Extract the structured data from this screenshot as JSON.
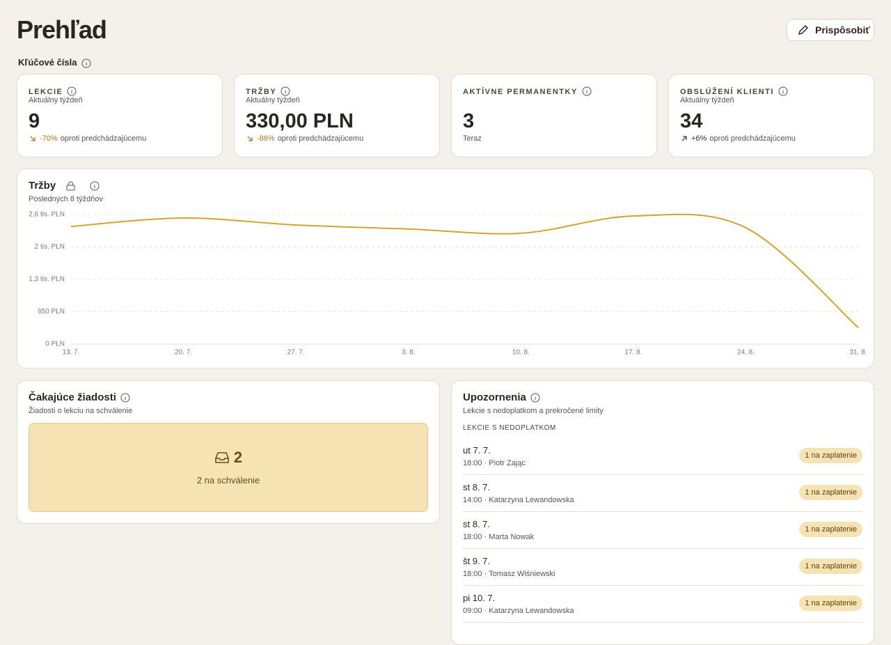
{
  "header": {
    "title": "Prehľad",
    "customize_button": "Prispôsobiť"
  },
  "key_figures": {
    "title": "Kľúčové čísla",
    "cards": [
      {
        "label": "LEKCIE",
        "sublabel": "Aktuálny týždeň",
        "value": "9",
        "change": "-70%",
        "comparison": "oproti predchádzajúcemu"
      },
      {
        "label": "TRŽBY",
        "sublabel": "Aktuálny týždeň",
        "value": "330,00 PLN",
        "change": "-86%",
        "comparison": "oproti predchádzajúcemu"
      },
      {
        "label": "AKTÍVNE PERMANENTKY",
        "value": "3",
        "note": "Teraz"
      },
      {
        "label": "OBSLÚŽENÍ KLIENTI",
        "sublabel": "Aktuálny týždeň",
        "value": "34",
        "change": "+6%",
        "comparison": "oproti predchádzajúcemu"
      }
    ]
  },
  "chart_data": {
    "type": "line",
    "title": "Tržby",
    "subtitle": "Posledných 8 týždňov",
    "categories": [
      "13. 7.",
      "20. 7.",
      "27. 7.",
      "3. 8.",
      "10. 8.",
      "17. 8.",
      "24. 8.",
      "31. 8."
    ],
    "values": [
      2360,
      2530,
      2390,
      2310,
      2225,
      2570,
      2335,
      330
    ],
    "color": "#d4a42a",
    "ylim": [
      0,
      2600
    ],
    "yticks": [
      {
        "value": 0,
        "label": "0 PLN"
      },
      {
        "value": 650,
        "label": "650 PLN"
      },
      {
        "value": 1300,
        "label": "1,3 tis. PLN"
      },
      {
        "value": 1950,
        "label": "2 tis. PLN"
      },
      {
        "value": 2600,
        "label": "2,6 tis. PLN"
      }
    ],
    "grid": true
  },
  "pending": {
    "title": "Čakajúce žiadosti",
    "subtitle": "Žiadosti o lekciu na schválenie",
    "count": "2",
    "label": "2 na schválenie"
  },
  "alerts": {
    "title": "Upozornenia",
    "subtitle": "Lekcie s nedoplatkom a prekročené limity",
    "section": "LEKCIE S NEDOPLATKOM",
    "items": [
      {
        "date": "ut 7. 7.",
        "detail": "18:00 · Piotr Zając",
        "badge": "1 na zaplatenie"
      },
      {
        "date": "st 8. 7.",
        "detail": "14:00 · Katarzyna Lewandowska",
        "badge": "1 na zaplatenie"
      },
      {
        "date": "st 8. 7.",
        "detail": "18:00 · Marta Nowak",
        "badge": "1 na zaplatenie"
      },
      {
        "date": "št 9. 7.",
        "detail": "18:00 · Tomasz Wiśniewski",
        "badge": "1 na zaplatenie"
      },
      {
        "date": "pi 10. 7.",
        "detail": "09:00 · Katarzyna Lewandowska",
        "badge": "1 na zaplatenie"
      }
    ]
  }
}
